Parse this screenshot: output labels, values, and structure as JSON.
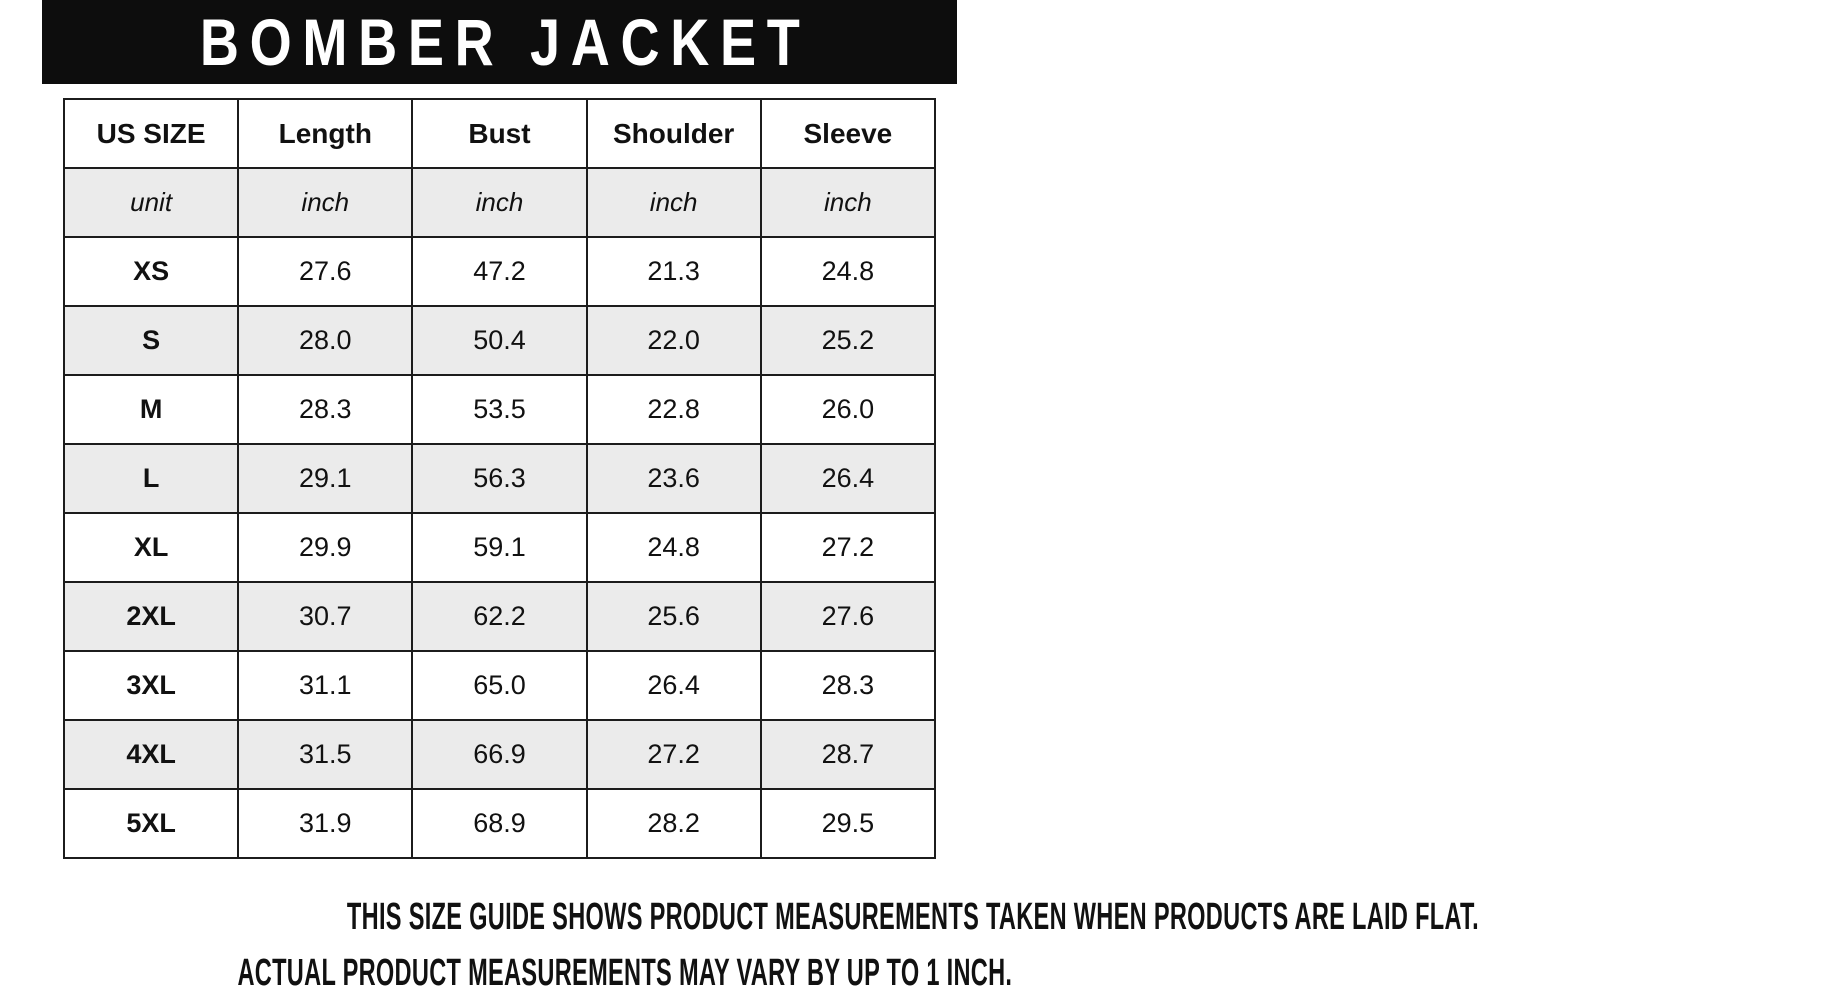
{
  "title": "BOMBER JACKET",
  "table": {
    "columns": [
      "US SIZE",
      "Length",
      "Bust",
      "Shoulder",
      "Sleeve"
    ],
    "unit_cells": [
      "unit",
      "inch",
      "inch",
      "inch",
      "inch"
    ],
    "rows": [
      {
        "size": "XS",
        "length": "27.6",
        "bust": "47.2",
        "shoulder": "21.3",
        "sleeve": "24.8"
      },
      {
        "size": "S",
        "length": "28.0",
        "bust": "50.4",
        "shoulder": "22.0",
        "sleeve": "25.2"
      },
      {
        "size": "M",
        "length": "28.3",
        "bust": "53.5",
        "shoulder": "22.8",
        "sleeve": "26.0"
      },
      {
        "size": "L",
        "length": "29.1",
        "bust": "56.3",
        "shoulder": "23.6",
        "sleeve": "26.4"
      },
      {
        "size": "XL",
        "length": "29.9",
        "bust": "59.1",
        "shoulder": "24.8",
        "sleeve": "27.2"
      },
      {
        "size": "2XL",
        "length": "30.7",
        "bust": "62.2",
        "shoulder": "25.6",
        "sleeve": "27.6"
      },
      {
        "size": "3XL",
        "length": "31.1",
        "bust": "65.0",
        "shoulder": "26.4",
        "sleeve": "28.3"
      },
      {
        "size": "4XL",
        "length": "31.5",
        "bust": "66.9",
        "shoulder": "27.2",
        "sleeve": "28.7"
      },
      {
        "size": "5XL",
        "length": "31.9",
        "bust": "68.9",
        "shoulder": "28.2",
        "sleeve": "29.5"
      }
    ]
  },
  "footer": {
    "line1": "THIS SIZE GUIDE SHOWS PRODUCT MEASUREMENTS TAKEN WHEN PRODUCTS ARE LAID FLAT.",
    "line2": "ACTUAL PRODUCT MEASUREMENTS MAY VARY BY UP TO 1 INCH."
  },
  "colors": {
    "header_bg": "#0d0d0d",
    "stripe": "#ebebeb",
    "border": "#1c1c1c",
    "text": "#111111",
    "title_text": "#ffffff"
  }
}
